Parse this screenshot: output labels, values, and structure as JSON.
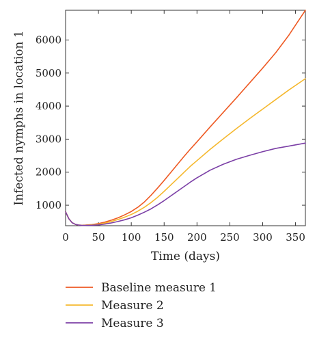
{
  "chart_data": {
    "type": "line",
    "xlabel": "Time (days)",
    "ylabel": "Infected nymphs in location 1",
    "xlim": [
      0,
      365
    ],
    "ylim": [
      380,
      6900
    ],
    "x_ticks": [
      0,
      50,
      100,
      150,
      200,
      250,
      300,
      350
    ],
    "y_ticks": [
      1000,
      2000,
      3000,
      4000,
      5000,
      6000
    ],
    "grid": false,
    "legend_position": "bottom",
    "series": [
      {
        "name": "Baseline measure 1",
        "color": "#ee5a24",
        "x": [
          0,
          5,
          10,
          15,
          20,
          25,
          30,
          40,
          50,
          60,
          70,
          80,
          90,
          100,
          110,
          120,
          130,
          140,
          150,
          160,
          170,
          180,
          190,
          200,
          220,
          240,
          260,
          280,
          300,
          320,
          340,
          365
        ],
        "y": [
          800,
          590,
          470,
          420,
          400,
          395,
          400,
          415,
          445,
          490,
          550,
          620,
          710,
          810,
          940,
          1100,
          1300,
          1520,
          1750,
          1990,
          2230,
          2470,
          2700,
          2920,
          3370,
          3810,
          4250,
          4700,
          5150,
          5620,
          6150,
          6900
        ]
      },
      {
        "name": "Measure 2",
        "color": "#f5b82e",
        "x": [
          0,
          5,
          10,
          15,
          20,
          25,
          30,
          40,
          50,
          60,
          70,
          80,
          90,
          100,
          110,
          120,
          130,
          140,
          150,
          160,
          170,
          180,
          190,
          200,
          220,
          240,
          260,
          280,
          300,
          320,
          340,
          365
        ],
        "y": [
          800,
          590,
          470,
          420,
          400,
          393,
          395,
          405,
          425,
          460,
          510,
          570,
          640,
          720,
          820,
          940,
          1080,
          1240,
          1420,
          1610,
          1800,
          1990,
          2180,
          2350,
          2690,
          3010,
          3320,
          3620,
          3910,
          4200,
          4490,
          4830
        ]
      },
      {
        "name": "Measure 3",
        "color": "#7b3fa6",
        "x": [
          0,
          5,
          10,
          15,
          20,
          25,
          30,
          40,
          50,
          60,
          70,
          80,
          90,
          100,
          110,
          120,
          130,
          140,
          150,
          160,
          170,
          180,
          190,
          200,
          220,
          240,
          260,
          280,
          300,
          320,
          340,
          365
        ],
        "y": [
          800,
          590,
          470,
          420,
          400,
          390,
          390,
          395,
          405,
          430,
          465,
          510,
          560,
          620,
          700,
          790,
          890,
          1010,
          1140,
          1280,
          1420,
          1560,
          1700,
          1830,
          2060,
          2240,
          2390,
          2510,
          2620,
          2720,
          2790,
          2880
        ]
      }
    ]
  }
}
